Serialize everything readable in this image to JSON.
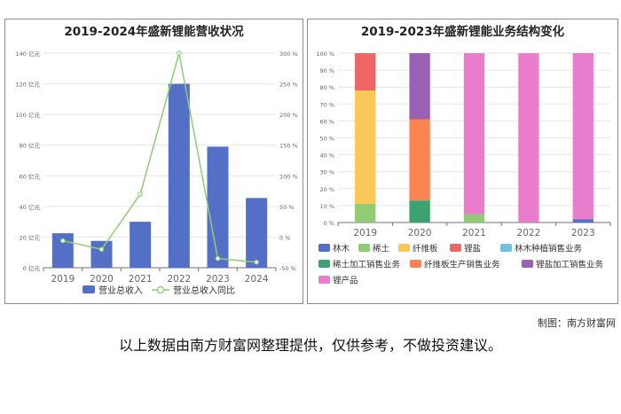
{
  "chart_data": [
    {
      "type": "bar",
      "title": "2019-2024年盛新锂能营收状况",
      "categories": [
        "2019",
        "2020",
        "2021",
        "2022",
        "2023",
        "2024"
      ],
      "y_left_ticks": [
        "0 亿元",
        "20 亿元",
        "40 亿元",
        "60 亿元",
        "80 亿元",
        "100 亿元",
        "120 亿元",
        "140 亿元"
      ],
      "y_left_range": [
        0,
        140
      ],
      "y_right_ticks": [
        "-50 %",
        "0 %",
        "50 %",
        "100 %",
        "150 %",
        "200 %",
        "250 %",
        "300 %"
      ],
      "y_right_range": [
        -50,
        300
      ],
      "series": [
        {
          "name": "营业总收入",
          "type": "bar",
          "axis": "left",
          "color": "#5470c6",
          "values": [
            22.5,
            17.5,
            30,
            120,
            79,
            45.5
          ]
        },
        {
          "name": "营业总收入同比",
          "type": "line",
          "axis": "right",
          "color": "#91cc75",
          "values": [
            -6,
            -20,
            70,
            300,
            -35,
            -41
          ]
        }
      ],
      "grid": true,
      "legend": "bottom"
    },
    {
      "type": "bar",
      "stacked": true,
      "title": "2019-2023年盛新锂能业务结构变化",
      "categories": [
        "2019",
        "2020",
        "2021",
        "2022",
        "2023"
      ],
      "y_ticks": [
        "0 %",
        "10 %",
        "20 %",
        "30 %",
        "40 %",
        "50 %",
        "60 %",
        "70 %",
        "80 %",
        "90 %",
        "100 %"
      ],
      "ylim": [
        0,
        100
      ],
      "series": [
        {
          "name": "林木",
          "color": "#5470c6",
          "values": [
            0,
            0,
            0,
            0,
            2
          ]
        },
        {
          "name": "稀土",
          "color": "#91cc75",
          "values": [
            11,
            0,
            5,
            0,
            0
          ]
        },
        {
          "name": "纤维板",
          "color": "#fac858",
          "values": [
            67,
            0,
            0,
            0,
            0
          ]
        },
        {
          "name": "锂盐",
          "color": "#ee6666",
          "values": [
            22,
            0,
            0,
            0,
            0
          ]
        },
        {
          "name": "林木种植销售业务",
          "color": "#73c0de",
          "values": [
            0,
            0,
            0,
            0,
            0
          ]
        },
        {
          "name": "稀土加工销售业务",
          "color": "#3ba272",
          "values": [
            0,
            13,
            0,
            0,
            0
          ]
        },
        {
          "name": "纤维板生产销售业务",
          "color": "#fc8452",
          "values": [
            0,
            48,
            0,
            0,
            0
          ]
        },
        {
          "name": "锂盐加工销售业务",
          "color": "#9a60b4",
          "values": [
            0,
            39,
            0,
            0,
            0
          ]
        },
        {
          "name": "锂产品",
          "color": "#ea7ccc",
          "values": [
            0,
            0,
            95,
            100,
            98
          ]
        }
      ],
      "grid": true,
      "legend": "bottom"
    }
  ],
  "footer": {
    "credit": "制图：南方财富网",
    "disclaimer": "以上数据由南方财富网整理提供，仅供参考，不做投资建议。"
  }
}
